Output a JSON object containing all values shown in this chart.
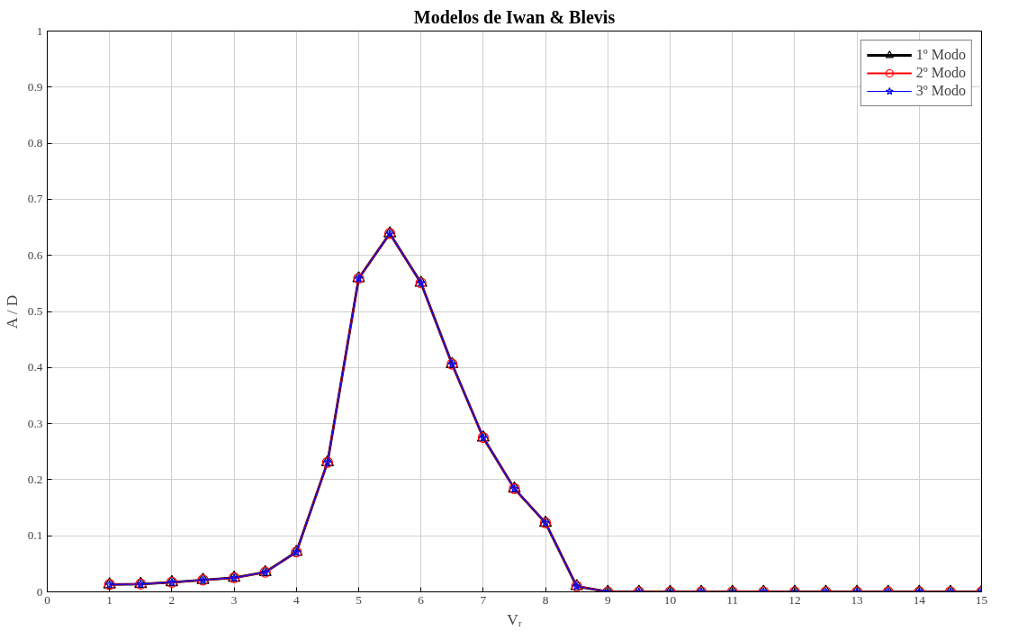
{
  "chart_data": {
    "type": "line",
    "title": "Modelos de Iwan & Blevis",
    "xlabel": "Vᵣ",
    "ylabel": "A / D",
    "x": [
      1,
      1.5,
      2,
      2.5,
      3,
      3.5,
      4,
      4.5,
      5,
      5.5,
      6,
      6.5,
      7,
      7.5,
      8,
      8.5,
      9,
      9.5,
      10,
      10.5,
      11,
      11.5,
      12,
      12.5,
      13,
      13.5,
      14,
      14.5,
      15
    ],
    "series": [
      {
        "name": "1º Modo",
        "color": "#000000",
        "marker": "triangle",
        "values": [
          0.013,
          0.014,
          0.017,
          0.021,
          0.025,
          0.035,
          0.071,
          0.231,
          0.559,
          0.639,
          0.551,
          0.406,
          0.275,
          0.184,
          0.123,
          0.01,
          0,
          0,
          0,
          0,
          0,
          0,
          0,
          0,
          0,
          0,
          0,
          0,
          0
        ]
      },
      {
        "name": "2º Modo",
        "color": "#ff0000",
        "marker": "circle",
        "values": [
          0.013,
          0.014,
          0.017,
          0.021,
          0.025,
          0.035,
          0.071,
          0.231,
          0.559,
          0.639,
          0.551,
          0.406,
          0.275,
          0.184,
          0.123,
          0.01,
          0,
          0,
          0,
          0,
          0,
          0,
          0,
          0,
          0,
          0,
          0,
          0,
          0
        ]
      },
      {
        "name": "3º Modo",
        "color": "#0000ff",
        "marker": "star",
        "values": [
          0.013,
          0.014,
          0.017,
          0.021,
          0.025,
          0.035,
          0.071,
          0.231,
          0.559,
          0.639,
          0.551,
          0.406,
          0.275,
          0.184,
          0.123,
          0.01,
          0,
          0,
          0,
          0,
          0,
          0,
          0,
          0,
          0,
          0,
          0,
          0,
          0
        ]
      }
    ],
    "xlim": [
      0,
      15
    ],
    "xticks": [
      0,
      1,
      2,
      3,
      4,
      5,
      6,
      7,
      8,
      9,
      10,
      11,
      12,
      13,
      14,
      15
    ],
    "ylim": [
      0,
      1
    ],
    "yticks": [
      0,
      0.1,
      0.2,
      0.3,
      0.4,
      0.5,
      0.6,
      0.7,
      0.8,
      0.9,
      1
    ],
    "grid": true,
    "legend": "top right",
    "line_style": "solid"
  }
}
